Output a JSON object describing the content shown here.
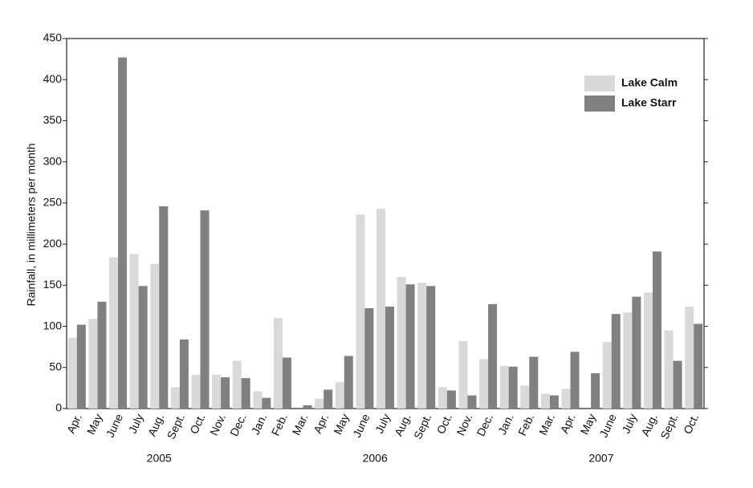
{
  "chart_data": {
    "type": "bar",
    "y_label": "Rainfall, in millimeters per month",
    "categories": [
      "Apr.",
      "May",
      "June",
      "July",
      "Aug.",
      "Sept.",
      "Oct.",
      "Nov.",
      "Dec.",
      "Jan.",
      "Feb.",
      "Mar.",
      "Apr.",
      "May",
      "June",
      "July",
      "Aug.",
      "Sept.",
      "Oct.",
      "Nov.",
      "Dec.",
      "Jan.",
      "Feb.",
      "Mar.",
      "Apr.",
      "May",
      "June",
      "July",
      "Aug.",
      "Sept.",
      "Oct."
    ],
    "year_labels": [
      "2005",
      "2006",
      "2007"
    ],
    "series": [
      {
        "name": "Lake Calm",
        "color": "#d9d9d9",
        "values": [
          86,
          109,
          184,
          188,
          176,
          26,
          41,
          41,
          58,
          21,
          110,
          0,
          12,
          32,
          236,
          243,
          160,
          153,
          26,
          82,
          60,
          52,
          28,
          18,
          24,
          0,
          81,
          117,
          141,
          95,
          124
        ]
      },
      {
        "name": "Lake Starr",
        "color": "#808080",
        "values": [
          102,
          130,
          427,
          149,
          246,
          84,
          241,
          38,
          37,
          13,
          62,
          4,
          23,
          64,
          122,
          124,
          151,
          149,
          22,
          16,
          127,
          51,
          63,
          16,
          69,
          43,
          115,
          136,
          191,
          58,
          103
        ]
      }
    ],
    "ylim": [
      0,
      450
    ],
    "yticks": [
      0,
      50,
      100,
      150,
      200,
      250,
      300,
      350,
      400,
      450
    ],
    "grid": false,
    "legend": "top-right"
  }
}
